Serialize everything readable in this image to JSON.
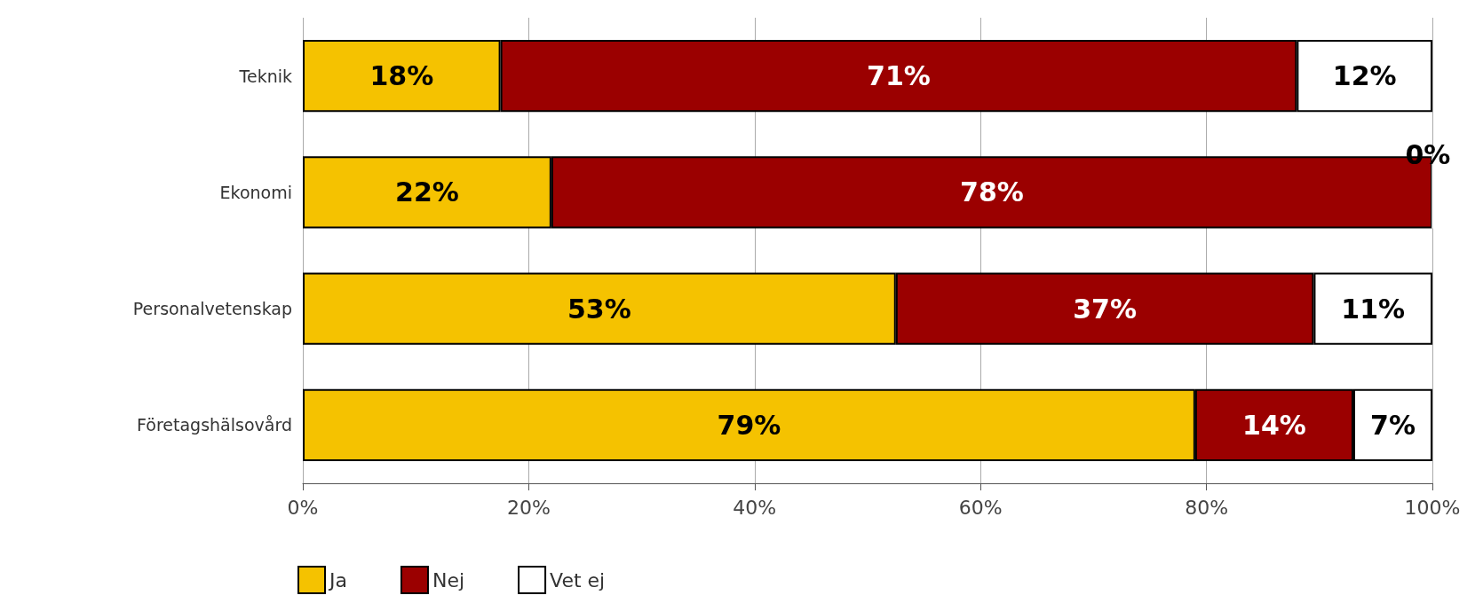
{
  "chart_data": {
    "type": "bar",
    "orientation": "horizontal",
    "stacked": true,
    "categories": [
      "Teknik",
      "Ekonomi",
      "Personalvetenskap",
      "Företagshälsovård"
    ],
    "series": [
      {
        "name": "Ja",
        "color": "#f5c200",
        "values": [
          17.5,
          22,
          52.5,
          79
        ],
        "value_labels": [
          "18%",
          "22%",
          "53%",
          "79%"
        ]
      },
      {
        "name": "Nej",
        "color": "#9b0000",
        "values": [
          70.5,
          78,
          37,
          14
        ],
        "value_labels": [
          "71%",
          "78%",
          "37%",
          "14%"
        ]
      },
      {
        "name": "Vet ej",
        "color": "#ffffff",
        "values": [
          12,
          0,
          10.5,
          7
        ],
        "value_labels": [
          "12%",
          "0%",
          "11%",
          "7%"
        ]
      }
    ],
    "xlim": [
      0,
      100
    ],
    "xticks": [
      {
        "value": 0,
        "label": "0%"
      },
      {
        "value": 20,
        "label": "20%"
      },
      {
        "value": 40,
        "label": "40%"
      },
      {
        "value": 60,
        "label": "60%"
      },
      {
        "value": 80,
        "label": "80%"
      },
      {
        "value": 100,
        "label": "100%"
      }
    ],
    "grid": "x",
    "legend": "bottom left"
  }
}
